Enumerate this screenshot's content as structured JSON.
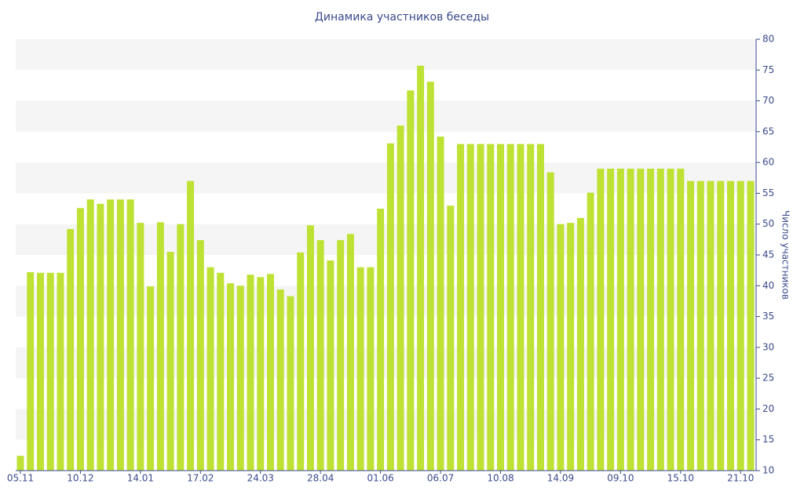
{
  "chart_data": {
    "type": "bar",
    "title": "Динамика участников беседы",
    "y_label": "Число участников",
    "categories": [
      "05.11",
      null,
      null,
      null,
      null,
      null,
      "10.12",
      null,
      null,
      null,
      null,
      null,
      "14.01",
      null,
      null,
      null,
      null,
      null,
      "17.02",
      null,
      null,
      null,
      null,
      null,
      "24.03",
      null,
      null,
      null,
      null,
      null,
      "28.04",
      null,
      null,
      null,
      null,
      null,
      "01.06",
      null,
      null,
      null,
      null,
      null,
      "06.07",
      null,
      null,
      null,
      null,
      null,
      "10.08",
      null,
      null,
      null,
      null,
      null,
      "14.09",
      null,
      null,
      null,
      null,
      null,
      "09.10",
      null,
      null,
      null,
      null,
      null,
      "15.10",
      null,
      null,
      null,
      null,
      null,
      "21.10",
      null
    ],
    "values": [
      12.4,
      42.2,
      42.1,
      42.1,
      42.1,
      49.2,
      52.6,
      54,
      53.3,
      54,
      54,
      54,
      50.2,
      39.9,
      50.3,
      45.5,
      50,
      57,
      47.4,
      43,
      42.1,
      40.4,
      40,
      41.8,
      41.4,
      41.9,
      39.4,
      38.3,
      45.4,
      49.8,
      47.4,
      44.1,
      47.4,
      48.4,
      43,
      43,
      52.5,
      63.1,
      66,
      71.7,
      75.7,
      73.1,
      64.2,
      53,
      63,
      63,
      63,
      63,
      63,
      63,
      63,
      63,
      63,
      58.4,
      50,
      50.2,
      51,
      55.1,
      59,
      59,
      59,
      59,
      59,
      59,
      59,
      59,
      59,
      57,
      57,
      57,
      57,
      57,
      57,
      57
    ],
    "color": "#bde234",
    "ylim": [
      10,
      80
    ],
    "yticks": [
      10,
      15,
      20,
      25,
      30,
      35,
      40,
      45,
      50,
      55,
      60,
      65,
      70,
      75,
      80
    ],
    "y_axis_side": "right",
    "stripes": true
  }
}
